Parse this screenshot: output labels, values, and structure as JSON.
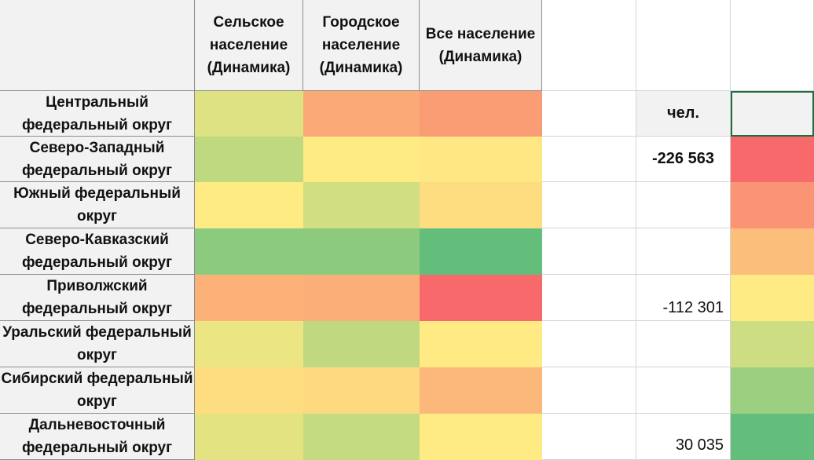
{
  "headers": {
    "col1": "Сельское население (Динамика)",
    "col2": "Городское население (Динамика)",
    "col3": "Все население (Динамика)"
  },
  "rows": [
    {
      "name": "Центральный федеральный округ",
      "c1": "#dfe282",
      "c2": "#fbaa77",
      "c3": "#fa9d75",
      "g": "#fa9d75"
    },
    {
      "name": "Северо-Западный федеральный округ",
      "c1": "#bfd981",
      "c2": "#ffeb84",
      "c3": "#ffe784",
      "g": "#f8696b"
    },
    {
      "name": "Южный федеральный округ",
      "c1": "#ffeb84",
      "c2": "#d2de82",
      "c3": "#fedd81",
      "g": "#fb9474"
    },
    {
      "name": "Северо-Кавказский федеральный округ",
      "c1": "#8ccb7e",
      "c2": "#8ccb7e",
      "c3": "#63be7b",
      "g": "#fcbf7b"
    },
    {
      "name": "Приволжский федеральный округ",
      "c1": "#fcb179",
      "c2": "#fbaf78",
      "c3": "#f8696b",
      "g": "#ffeb84"
    },
    {
      "name": "Уральский федеральный округ",
      "c1": "#ebe683",
      "c2": "#c0d981",
      "c3": "#ffea84",
      "g": "#cddd82"
    },
    {
      "name": "Сибирский федеральный округ",
      "c1": "#fedd81",
      "c2": "#fed980",
      "c3": "#fcb77a",
      "g": "#9ccf7f"
    },
    {
      "name": "Дальневосточный федеральный округ",
      "c1": "#e3e382",
      "c2": "#c5db81",
      "c3": "#ffeb84",
      "g": "#63be7b"
    }
  ],
  "side": {
    "unit_label": "чел.",
    "min_value": "-226 563",
    "mid_value": "-112 301",
    "max_value": "30 035"
  }
}
